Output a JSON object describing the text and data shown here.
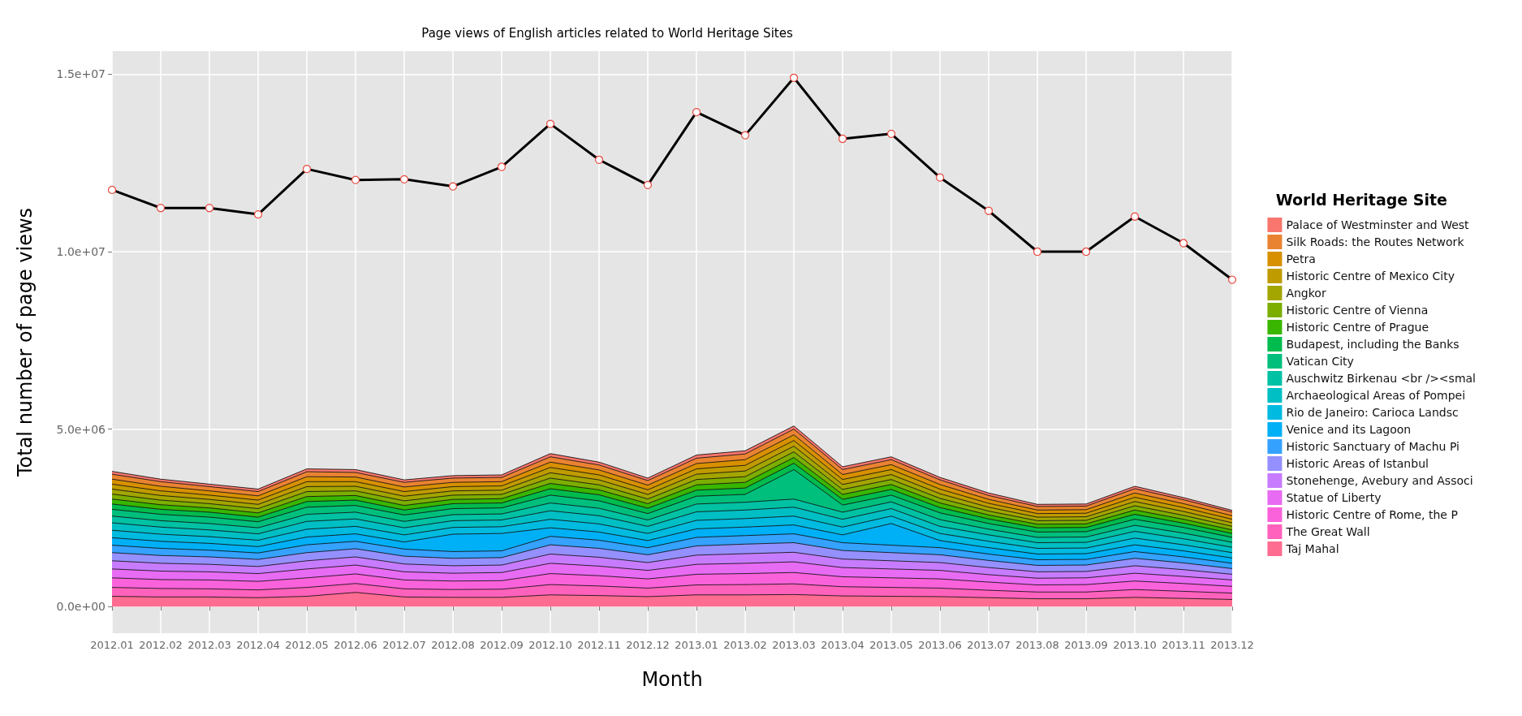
{
  "chart_data": {
    "type": "area",
    "stacked": true,
    "title": "Page views of English articles related to World Heritage Sites",
    "xlabel": "Month",
    "ylabel": "Total number of page views",
    "legend_title": "World Heritage Site",
    "legend": "right",
    "grid": true,
    "categories": [
      "2012.01",
      "2012.02",
      "2012.03",
      "2012.04",
      "2012.05",
      "2012.06",
      "2012.07",
      "2012.08",
      "2012.09",
      "2012.10",
      "2012.11",
      "2012.12",
      "2013.01",
      "2013.02",
      "2013.03",
      "2013.04",
      "2013.05",
      "2013.06",
      "2013.07",
      "2013.08",
      "2013.09",
      "2013.10",
      "2013.11",
      "2013.12"
    ],
    "ylim": [
      -750000,
      15650000
    ],
    "yticks": [
      {
        "value": 0,
        "label": "0.0e+00"
      },
      {
        "value": 5000000,
        "label": "5.0e+06"
      },
      {
        "value": 10000000,
        "label": "1.0e+07"
      },
      {
        "value": 15000000,
        "label": "1.5e+07"
      }
    ],
    "series": [
      {
        "name": "Taj Mahal",
        "color": "#ff6c91",
        "values": [
          290000,
          270000,
          270000,
          250000,
          290000,
          400000,
          270000,
          260000,
          260000,
          330000,
          310000,
          280000,
          330000,
          330000,
          340000,
          300000,
          290000,
          280000,
          250000,
          220000,
          220000,
          260000,
          230000,
          200000
        ]
      },
      {
        "name": "The Great Wall",
        "color": "#ff62bc",
        "values": [
          250000,
          240000,
          230000,
          220000,
          250000,
          250000,
          230000,
          220000,
          230000,
          290000,
          270000,
          240000,
          280000,
          290000,
          300000,
          260000,
          250000,
          240000,
          210000,
          190000,
          190000,
          220000,
          200000,
          180000
        ]
      },
      {
        "name": "Historic Centre of Rome, the P",
        "color": "#fa62db",
        "values": [
          270000,
          250000,
          250000,
          240000,
          270000,
          270000,
          250000,
          240000,
          240000,
          310000,
          290000,
          260000,
          300000,
          310000,
          320000,
          280000,
          270000,
          260000,
          230000,
          200000,
          210000,
          240000,
          220000,
          190000
        ]
      },
      {
        "name": "Statue of Liberty",
        "color": "#e76bf3",
        "values": [
          250000,
          240000,
          230000,
          220000,
          250000,
          250000,
          230000,
          220000,
          230000,
          290000,
          270000,
          240000,
          280000,
          290000,
          300000,
          260000,
          250000,
          240000,
          210000,
          190000,
          190000,
          220000,
          200000,
          180000
        ]
      },
      {
        "name": "Stonehenge, Avebury and Associ",
        "color": "#c77cff",
        "values": [
          230000,
          220000,
          210000,
          200000,
          230000,
          230000,
          220000,
          210000,
          210000,
          260000,
          250000,
          220000,
          260000,
          270000,
          270000,
          240000,
          230000,
          220000,
          200000,
          180000,
          180000,
          210000,
          190000,
          160000
        ]
      },
      {
        "name": "Historic Areas of Istanbul",
        "color": "#9590ff",
        "values": [
          230000,
          220000,
          210000,
          200000,
          230000,
          230000,
          220000,
          210000,
          210000,
          260000,
          250000,
          220000,
          260000,
          270000,
          270000,
          240000,
          230000,
          220000,
          200000,
          180000,
          180000,
          210000,
          190000,
          160000
        ]
      },
      {
        "name": "Historic Sanctuary of Machu Pi",
        "color": "#35a2ff",
        "values": [
          210000,
          200000,
          190000,
          180000,
          220000,
          210000,
          200000,
          190000,
          190000,
          240000,
          230000,
          200000,
          240000,
          240000,
          250000,
          220000,
          210000,
          200000,
          180000,
          160000,
          160000,
          190000,
          170000,
          150000
        ]
      },
      {
        "name": "Venice and its Lagoon",
        "color": "#00b0f6",
        "values": [
          210000,
          200000,
          190000,
          180000,
          220000,
          210000,
          200000,
          490000,
          490000,
          240000,
          230000,
          200000,
          240000,
          240000,
          250000,
          220000,
          610000,
          200000,
          180000,
          160000,
          160000,
          190000,
          170000,
          150000
        ]
      },
      {
        "name": "Rio de Janeiro: Carioca Landsc",
        "color": "#00bae0",
        "values": [
          210000,
          200000,
          190000,
          180000,
          220000,
          210000,
          200000,
          190000,
          190000,
          240000,
          230000,
          200000,
          240000,
          240000,
          250000,
          220000,
          210000,
          200000,
          180000,
          160000,
          160000,
          190000,
          170000,
          150000
        ]
      },
      {
        "name": "Archaeological Areas of Pompei",
        "color": "#00bfc4",
        "values": [
          210000,
          200000,
          190000,
          180000,
          220000,
          210000,
          200000,
          190000,
          190000,
          240000,
          230000,
          200000,
          240000,
          240000,
          250000,
          220000,
          210000,
          200000,
          180000,
          160000,
          160000,
          190000,
          170000,
          150000
        ]
      },
      {
        "name": "Auschwitz Birkenau <br /><smal",
        "color": "#00c1a3",
        "values": [
          190000,
          180000,
          180000,
          170000,
          200000,
          190000,
          180000,
          170000,
          170000,
          220000,
          210000,
          180000,
          220000,
          220000,
          230000,
          200000,
          190000,
          190000,
          160000,
          150000,
          150000,
          170000,
          160000,
          140000
        ]
      },
      {
        "name": "Vatican City",
        "color": "#00bf7d",
        "values": [
          190000,
          180000,
          180000,
          170000,
          200000,
          190000,
          180000,
          170000,
          170000,
          220000,
          210000,
          180000,
          220000,
          220000,
          830000,
          200000,
          190000,
          190000,
          160000,
          150000,
          150000,
          170000,
          160000,
          140000
        ]
      },
      {
        "name": "Budapest, including the Banks",
        "color": "#00bb4e",
        "values": [
          150000,
          140000,
          140000,
          130000,
          160000,
          150000,
          140000,
          140000,
          140000,
          180000,
          170000,
          150000,
          170000,
          180000,
          180000,
          160000,
          160000,
          150000,
          130000,
          120000,
          120000,
          140000,
          120000,
          110000
        ]
      },
      {
        "name": "Historic Centre of Prague",
        "color": "#39b600",
        "values": [
          140000,
          130000,
          120000,
          120000,
          140000,
          130000,
          130000,
          120000,
          120000,
          150000,
          140000,
          130000,
          150000,
          160000,
          160000,
          140000,
          140000,
          130000,
          110000,
          100000,
          100000,
          120000,
          110000,
          100000
        ]
      },
      {
        "name": "Historic Centre of Vienna",
        "color": "#7cae00",
        "values": [
          140000,
          130000,
          120000,
          120000,
          140000,
          130000,
          130000,
          120000,
          120000,
          150000,
          140000,
          130000,
          150000,
          160000,
          160000,
          140000,
          140000,
          130000,
          110000,
          100000,
          100000,
          120000,
          110000,
          100000
        ]
      },
      {
        "name": "Angkor",
        "color": "#a3a500",
        "values": [
          140000,
          130000,
          120000,
          120000,
          140000,
          130000,
          130000,
          120000,
          120000,
          150000,
          140000,
          130000,
          150000,
          160000,
          160000,
          140000,
          140000,
          130000,
          110000,
          100000,
          100000,
          120000,
          110000,
          100000
        ]
      },
      {
        "name": "Historic Centre of Mexico City",
        "color": "#c09b00",
        "values": [
          140000,
          130000,
          120000,
          120000,
          140000,
          130000,
          130000,
          120000,
          120000,
          150000,
          140000,
          130000,
          150000,
          160000,
          160000,
          140000,
          140000,
          130000,
          110000,
          100000,
          100000,
          120000,
          110000,
          100000
        ]
      },
      {
        "name": "Petra",
        "color": "#d89000",
        "values": [
          140000,
          130000,
          120000,
          120000,
          140000,
          130000,
          130000,
          120000,
          120000,
          150000,
          140000,
          130000,
          150000,
          160000,
          160000,
          140000,
          140000,
          130000,
          110000,
          100000,
          100000,
          120000,
          110000,
          100000
        ]
      },
      {
        "name": "Silk Roads: the Routes Network",
        "color": "#ea8331",
        "values": [
          140000,
          130000,
          120000,
          120000,
          140000,
          130000,
          130000,
          120000,
          120000,
          150000,
          140000,
          130000,
          150000,
          160000,
          160000,
          140000,
          140000,
          130000,
          110000,
          100000,
          100000,
          120000,
          110000,
          100000
        ]
      },
      {
        "name": "Palace of Westminster and West",
        "color": "#f8766d",
        "values": [
          80000,
          70000,
          70000,
          70000,
          80000,
          80000,
          70000,
          70000,
          70000,
          90000,
          80000,
          70000,
          90000,
          90000,
          90000,
          80000,
          80000,
          70000,
          70000,
          60000,
          60000,
          70000,
          60000,
          50000
        ]
      },
      {
        "type": "line",
        "color": "#000000",
        "marker": "circle",
        "values": [
          11740000,
          11230000,
          11230000,
          11050000,
          12330000,
          12020000,
          12040000,
          11840000,
          12390000,
          13600000,
          12590000,
          11880000,
          13930000,
          13280000,
          14900000,
          13180000,
          13320000,
          12090000,
          11150000,
          10000000,
          10000000,
          10990000,
          10240000,
          9210000
        ]
      }
    ]
  }
}
